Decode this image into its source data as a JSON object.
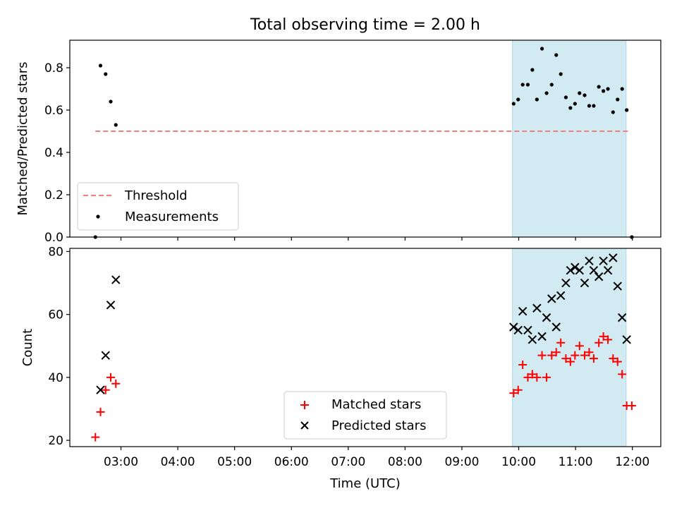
{
  "figure": {
    "title": "Total observing time = 2.00 h"
  },
  "colors": {
    "threshold": "#f08080",
    "measurement": "#000000",
    "matched": "#ff0000",
    "predicted": "#000000",
    "highlight": "#add8e6"
  },
  "chart_data": [
    {
      "type": "scatter",
      "ylabel": "Matched/Predicted stars",
      "xlim": [
        2.1,
        12.5
      ],
      "ylim": [
        0.0,
        0.93
      ],
      "yticks": [
        0.0,
        0.2,
        0.4,
        0.6,
        0.8
      ],
      "ytick_labels": [
        "0.0",
        "0.2",
        "0.4",
        "0.6",
        "0.8"
      ],
      "highlight_span": [
        9.89,
        11.89
      ],
      "legend": {
        "position": "lower-left",
        "entries": [
          "Threshold",
          "Measurements"
        ]
      },
      "threshold": {
        "name": "Threshold",
        "x": [
          2.55,
          11.92
        ],
        "y": 0.5
      },
      "series": [
        {
          "name": "Measurements",
          "x": [
            2.55,
            2.64,
            2.73,
            2.82,
            2.91,
            9.91,
            9.99,
            10.07,
            10.16,
            10.24,
            10.32,
            10.41,
            10.49,
            10.58,
            10.66,
            10.74,
            10.83,
            10.91,
            10.99,
            11.07,
            11.16,
            11.24,
            11.32,
            11.41,
            11.49,
            11.57,
            11.66,
            11.74,
            11.82,
            11.9,
            11.99
          ],
          "y": [
            0.0,
            0.81,
            0.77,
            0.64,
            0.53,
            0.63,
            0.65,
            0.72,
            0.72,
            0.79,
            0.65,
            0.89,
            0.68,
            0.72,
            0.86,
            0.77,
            0.66,
            0.61,
            0.63,
            0.68,
            0.67,
            0.62,
            0.62,
            0.71,
            0.69,
            0.7,
            0.59,
            0.65,
            0.7,
            0.6,
            0.0
          ]
        }
      ]
    },
    {
      "type": "scatter",
      "ylabel": "Count",
      "xlabel": "Time (UTC)",
      "xlim": [
        2.1,
        12.5
      ],
      "ylim": [
        18,
        81
      ],
      "yticks": [
        20,
        40,
        60,
        80
      ],
      "ytick_labels": [
        "20",
        "40",
        "60",
        "80"
      ],
      "xticks": [
        3,
        4,
        5,
        6,
        7,
        8,
        9,
        10,
        11,
        12
      ],
      "xtick_labels": [
        "03:00",
        "04:00",
        "05:00",
        "06:00",
        "07:00",
        "08:00",
        "09:00",
        "10:00",
        "11:00",
        "12:00"
      ],
      "highlight_span": [
        9.89,
        11.89
      ],
      "legend": {
        "position": "lower-center",
        "entries": [
          "Matched stars",
          "Predicted stars"
        ]
      },
      "series": [
        {
          "name": "Matched stars",
          "marker": "plus",
          "x": [
            2.55,
            2.64,
            2.73,
            2.82,
            2.91,
            9.91,
            9.99,
            10.07,
            10.16,
            10.24,
            10.32,
            10.41,
            10.49,
            10.58,
            10.66,
            10.74,
            10.83,
            10.91,
            10.99,
            11.07,
            11.16,
            11.24,
            11.32,
            11.41,
            11.49,
            11.57,
            11.66,
            11.74,
            11.82,
            11.9,
            11.99
          ],
          "y": [
            21,
            29,
            36,
            40,
            38,
            35,
            36,
            44,
            40,
            41,
            40,
            47,
            40,
            47,
            48,
            51,
            46,
            45,
            47,
            50,
            47,
            48,
            46,
            51,
            53,
            52,
            46,
            45,
            41,
            31,
            31
          ]
        },
        {
          "name": "Predicted stars",
          "marker": "x",
          "x": [
            2.64,
            2.73,
            2.82,
            2.91,
            9.91,
            9.99,
            10.07,
            10.16,
            10.24,
            10.32,
            10.41,
            10.49,
            10.58,
            10.66,
            10.74,
            10.83,
            10.91,
            10.99,
            11.07,
            11.16,
            11.24,
            11.32,
            11.41,
            11.49,
            11.57,
            11.66,
            11.74,
            11.82,
            11.9
          ],
          "y": [
            36,
            47,
            63,
            71,
            56,
            55,
            61,
            55,
            52,
            62,
            53,
            59,
            65,
            56,
            66,
            70,
            74,
            75,
            74,
            70,
            77,
            74,
            72,
            77,
            74,
            78,
            69,
            59,
            52
          ]
        }
      ]
    }
  ]
}
